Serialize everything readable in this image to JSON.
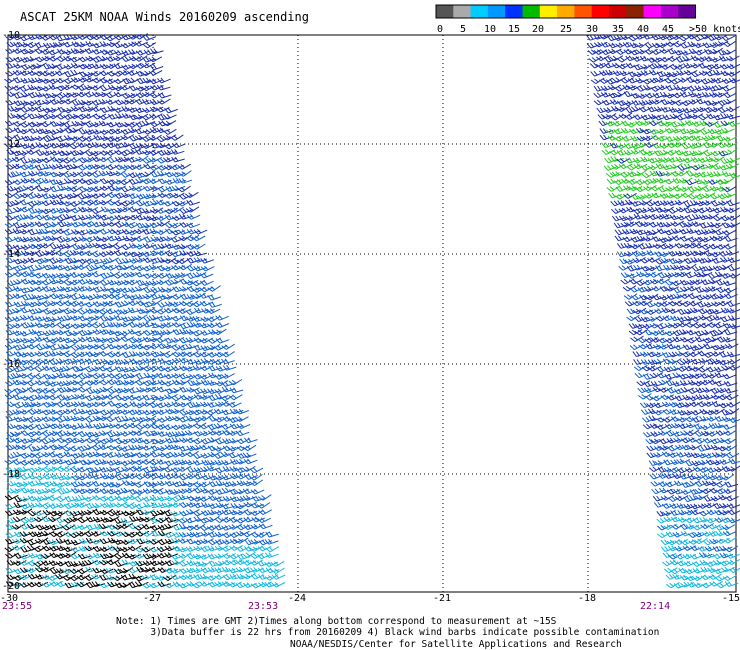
{
  "title": "ASCAT 25KM NOAA Winds 20160209 ascending",
  "legend": {
    "labels": [
      "0",
      "5",
      "10",
      "15",
      "20",
      "25",
      "30",
      "35",
      "40",
      "45",
      ">50 knots"
    ],
    "colors": [
      "#555555",
      "#aaaaaa",
      "#00ccff",
      "#0099ff",
      "#0033ff",
      "#00bb00",
      "#ffee00",
      "#ffaa00",
      "#ff5500",
      "#ff0000",
      "#cc0000",
      "#882200",
      "#ff00ff",
      "#aa00cc",
      "#660099"
    ]
  },
  "axes": {
    "y_labels": [
      "-10",
      "-12",
      "-14",
      "-16",
      "-18",
      "-20"
    ],
    "x_labels": [
      "-30",
      "-27",
      "-24",
      "-21",
      "-18",
      "-15"
    ],
    "lat_range": [
      -20,
      -10
    ],
    "lon_range": [
      -30,
      -15
    ]
  },
  "times": [
    "23:55",
    "23:53",
    "22:14"
  ],
  "notes": {
    "line1": "Note: 1) Times are GMT 2)Times along bottom correspond to measurement at ~15S",
    "line2": "3)Data buffer is 22 hrs from 20160209 4) Black wind barbs indicate possible contamination"
  },
  "credit": "NOAA/NESDIS/Center for Satellite Applications and Research",
  "swath_colors": {
    "dark_blue": "#1a2fb0",
    "blue": "#1060d0",
    "cyan": "#10b8e0",
    "green": "#22cc22",
    "black": "#000000"
  }
}
